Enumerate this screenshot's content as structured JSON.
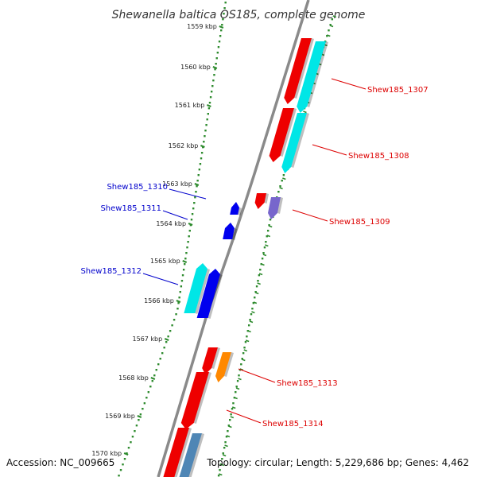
{
  "title": "Shewanella baltica OS185, complete genome",
  "footer": {
    "accession": "Accession: NC_009665",
    "topology": "Topology: circular; Length: 5,229,686 bp; Genes: 4,462"
  },
  "colors": {
    "backbone": "#8a8a8a",
    "ruler_dot": "#2e8b2e",
    "ruler_tick": "#2e8b2e",
    "label_right": "#dd0000",
    "label_left": "#0000cc",
    "gene_red": "#ee0000",
    "gene_cyan": "#00e6e6",
    "gene_blue": "#0000ee",
    "gene_purple": "#7766cc",
    "gene_orange": "#ff8800",
    "gene_steel": "#4f86b5"
  },
  "ticks": [
    {
      "label": "1559 kbp",
      "kbp": 1559
    },
    {
      "label": "1560 kbp",
      "kbp": 1560
    },
    {
      "label": "1561 kbp",
      "kbp": 1561
    },
    {
      "label": "1562 kbp",
      "kbp": 1562
    },
    {
      "label": "1563 kbp",
      "kbp": 1563
    },
    {
      "label": "1564 kbp",
      "kbp": 1564
    },
    {
      "label": "1565 kbp",
      "kbp": 1565
    },
    {
      "label": "1566 kbp",
      "kbp": 1566
    },
    {
      "label": "1567 kbp",
      "kbp": 1567
    },
    {
      "label": "1568 kbp",
      "kbp": 1568
    },
    {
      "label": "1569 kbp",
      "kbp": 1569
    },
    {
      "label": "1570 kbp",
      "kbp": 1570
    }
  ],
  "labels": [
    {
      "name": "Shew185_1307",
      "side": "right"
    },
    {
      "name": "Shew185_1308",
      "side": "right"
    },
    {
      "name": "Shew185_1309",
      "side": "right"
    },
    {
      "name": "Shew185_1310",
      "side": "left"
    },
    {
      "name": "Shew185_1311",
      "side": "left"
    },
    {
      "name": "Shew185_1312",
      "side": "left"
    },
    {
      "name": "Shew185_1313",
      "side": "right"
    },
    {
      "name": "Shew185_1314",
      "side": "right"
    }
  ]
}
